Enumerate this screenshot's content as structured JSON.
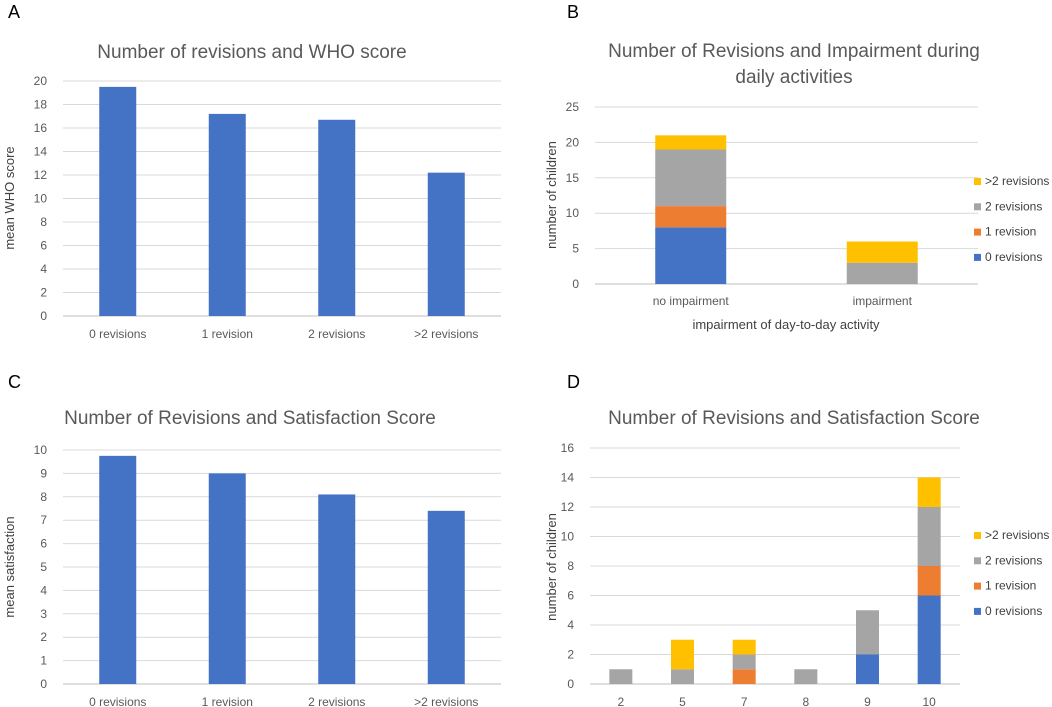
{
  "chart_data": [
    {
      "panel": "A",
      "type": "bar",
      "title": "Number of revisions and WHO score",
      "xlabel": "",
      "ylabel": "mean WHO score",
      "ylim": [
        0,
        20
      ],
      "yticks": [
        0,
        2,
        4,
        6,
        8,
        10,
        12,
        14,
        16,
        18,
        20
      ],
      "grid": true,
      "categories": [
        "0 revisions",
        "1 revision",
        "2 revisions",
        ">2 revisions"
      ],
      "values": [
        19.5,
        17.2,
        16.7,
        12.2
      ],
      "color": "#4472C4"
    },
    {
      "panel": "B",
      "type": "bar",
      "stacked": true,
      "title": "Number of Revisions and Impairment during daily activities",
      "title_lines": [
        "Number of Revisions and Impairment during",
        "daily activities"
      ],
      "xlabel": "impairment of day-to-day activity",
      "ylabel": "number of children",
      "ylim": [
        0,
        25
      ],
      "yticks": [
        0,
        5,
        10,
        15,
        20,
        25
      ],
      "grid": true,
      "categories": [
        "no impairment",
        "impairment"
      ],
      "series": [
        {
          "name": "0 revisions",
          "color": "#4472C4",
          "values": [
            8,
            0
          ]
        },
        {
          "name": "1 revision",
          "color": "#ED7D31",
          "values": [
            3,
            0
          ]
        },
        {
          "name": "2 revisions",
          "color": "#A5A5A5",
          "values": [
            8,
            3
          ]
        },
        {
          "name": ">2 revisions",
          "color": "#FFC000",
          "values": [
            2,
            3
          ]
        }
      ],
      "legend": "right"
    },
    {
      "panel": "C",
      "type": "bar",
      "title": "Number of Revisions and Satisfaction Score",
      "xlabel": "",
      "ylabel": "mean satisfaction",
      "ylim": [
        0,
        10
      ],
      "yticks": [
        0,
        1,
        2,
        3,
        4,
        5,
        6,
        7,
        8,
        9,
        10
      ],
      "grid": true,
      "categories": [
        "0 revisions",
        "1 revision",
        "2 revisions",
        ">2 revisions"
      ],
      "values": [
        9.75,
        9.0,
        8.1,
        7.4
      ],
      "color": "#4472C4"
    },
    {
      "panel": "D",
      "type": "bar",
      "stacked": true,
      "title": "Number of Revisions and Satisfaction Score",
      "xlabel": "",
      "ylabel": "number of children",
      "ylim": [
        0,
        16
      ],
      "yticks": [
        0,
        2,
        4,
        6,
        8,
        10,
        12,
        14,
        16
      ],
      "grid": true,
      "categories": [
        "2",
        "5",
        "7",
        "8",
        "9",
        "10"
      ],
      "series": [
        {
          "name": "0 revisions",
          "color": "#4472C4",
          "values": [
            0,
            0,
            0,
            0,
            2,
            6
          ]
        },
        {
          "name": "1 revision",
          "color": "#ED7D31",
          "values": [
            0,
            0,
            1,
            0,
            0,
            2
          ]
        },
        {
          "name": "2 revisions",
          "color": "#A5A5A5",
          "values": [
            1,
            1,
            1,
            1,
            3,
            4
          ]
        },
        {
          "name": ">2 revisions",
          "color": "#FFC000",
          "values": [
            0,
            2,
            1,
            0,
            0,
            2
          ]
        }
      ],
      "legend": "right"
    }
  ]
}
